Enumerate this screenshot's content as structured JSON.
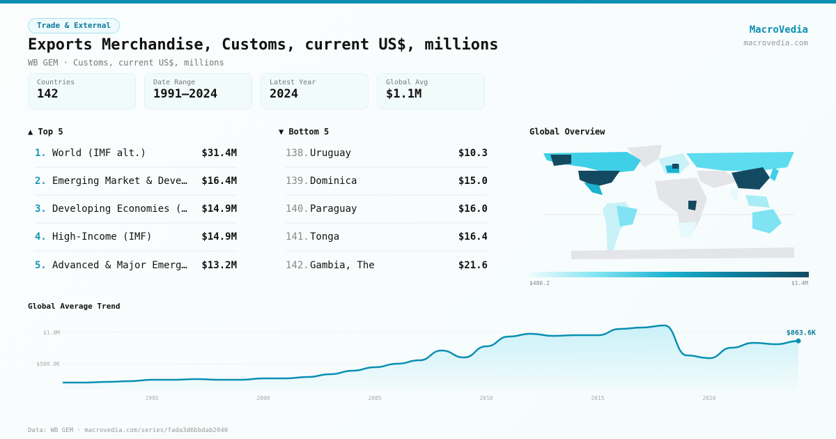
{
  "badge": "Trade & External",
  "title": "Exports Merchandise, Customs, current US$, millions",
  "subtitle": "WB GEM · Customs, current US$, millions",
  "brand": {
    "name": "MacroVedia",
    "url": "macrovedia.com"
  },
  "stats": [
    {
      "label": "Countries",
      "value": "142"
    },
    {
      "label": "Date Range",
      "value": "1991–2024"
    },
    {
      "label": "Latest Year",
      "value": "2024"
    },
    {
      "label": "Global Avg",
      "value": "$1.1M"
    }
  ],
  "top": {
    "title": "▲ Top 5",
    "items": [
      {
        "rank": "1.",
        "name": "World (IMF alt.)",
        "value": "$31.4M"
      },
      {
        "rank": "2.",
        "name": "Emerging Market & Deve…",
        "value": "$16.4M"
      },
      {
        "rank": "3.",
        "name": "Developing Economies (…",
        "value": "$14.9M"
      },
      {
        "rank": "4.",
        "name": "High-Income (IMF)",
        "value": "$14.9M"
      },
      {
        "rank": "5.",
        "name": "Advanced & Major Emerg…",
        "value": "$13.2M"
      }
    ]
  },
  "bottom": {
    "title": "▼ Bottom 5",
    "items": [
      {
        "rank": "138.",
        "name": "Uruguay",
        "value": "$10.3"
      },
      {
        "rank": "139.",
        "name": "Dominica",
        "value": "$15.0"
      },
      {
        "rank": "140.",
        "name": "Paraguay",
        "value": "$16.0"
      },
      {
        "rank": "141.",
        "name": "Tonga",
        "value": "$16.4"
      },
      {
        "rank": "142.",
        "name": "Gambia, The",
        "value": "$21.6"
      }
    ]
  },
  "map": {
    "title": "Global Overview",
    "min_label": "$486.2",
    "max_label": "$1.4M",
    "colors": [
      "#f0fbfd",
      "#7fe3f3",
      "#1cb2cf",
      "#0b7c9a",
      "#144a61"
    ],
    "nodata_color": "#e4e5e8"
  },
  "footer": "Data: WB GEM · macrovedia.com/series/fada3d6bbdab2040",
  "chart_data": {
    "type": "area",
    "title": "Global Average Trend",
    "x": [
      1991,
      1992,
      1993,
      1994,
      1995,
      1996,
      1997,
      1998,
      1999,
      2000,
      2001,
      2002,
      2003,
      2004,
      2005,
      2006,
      2007,
      2008,
      2009,
      2010,
      2011,
      2012,
      2013,
      2014,
      2015,
      2016,
      2017,
      2018,
      2019,
      2020,
      2021,
      2022,
      2023,
      2024
    ],
    "values": [
      200000,
      200000,
      211000,
      222000,
      244000,
      244000,
      255000,
      244000,
      244000,
      267000,
      267000,
      289000,
      333000,
      389000,
      444000,
      500000,
      555000,
      711000,
      600000,
      778000,
      933000,
      978000,
      944000,
      955000,
      955000,
      1055000,
      1078000,
      1111000,
      633000,
      589000,
      755000,
      833000,
      811000,
      863600
    ],
    "xticks": [
      "1995",
      "2000",
      "2005",
      "2010",
      "2015",
      "2020"
    ],
    "yticks": [
      {
        "value": 500000,
        "label": "$500.0K"
      },
      {
        "value": 1000000,
        "label": "$1.0M"
      }
    ],
    "last_label": "$863.6K",
    "color": "#0a8fb3",
    "grid": true
  }
}
